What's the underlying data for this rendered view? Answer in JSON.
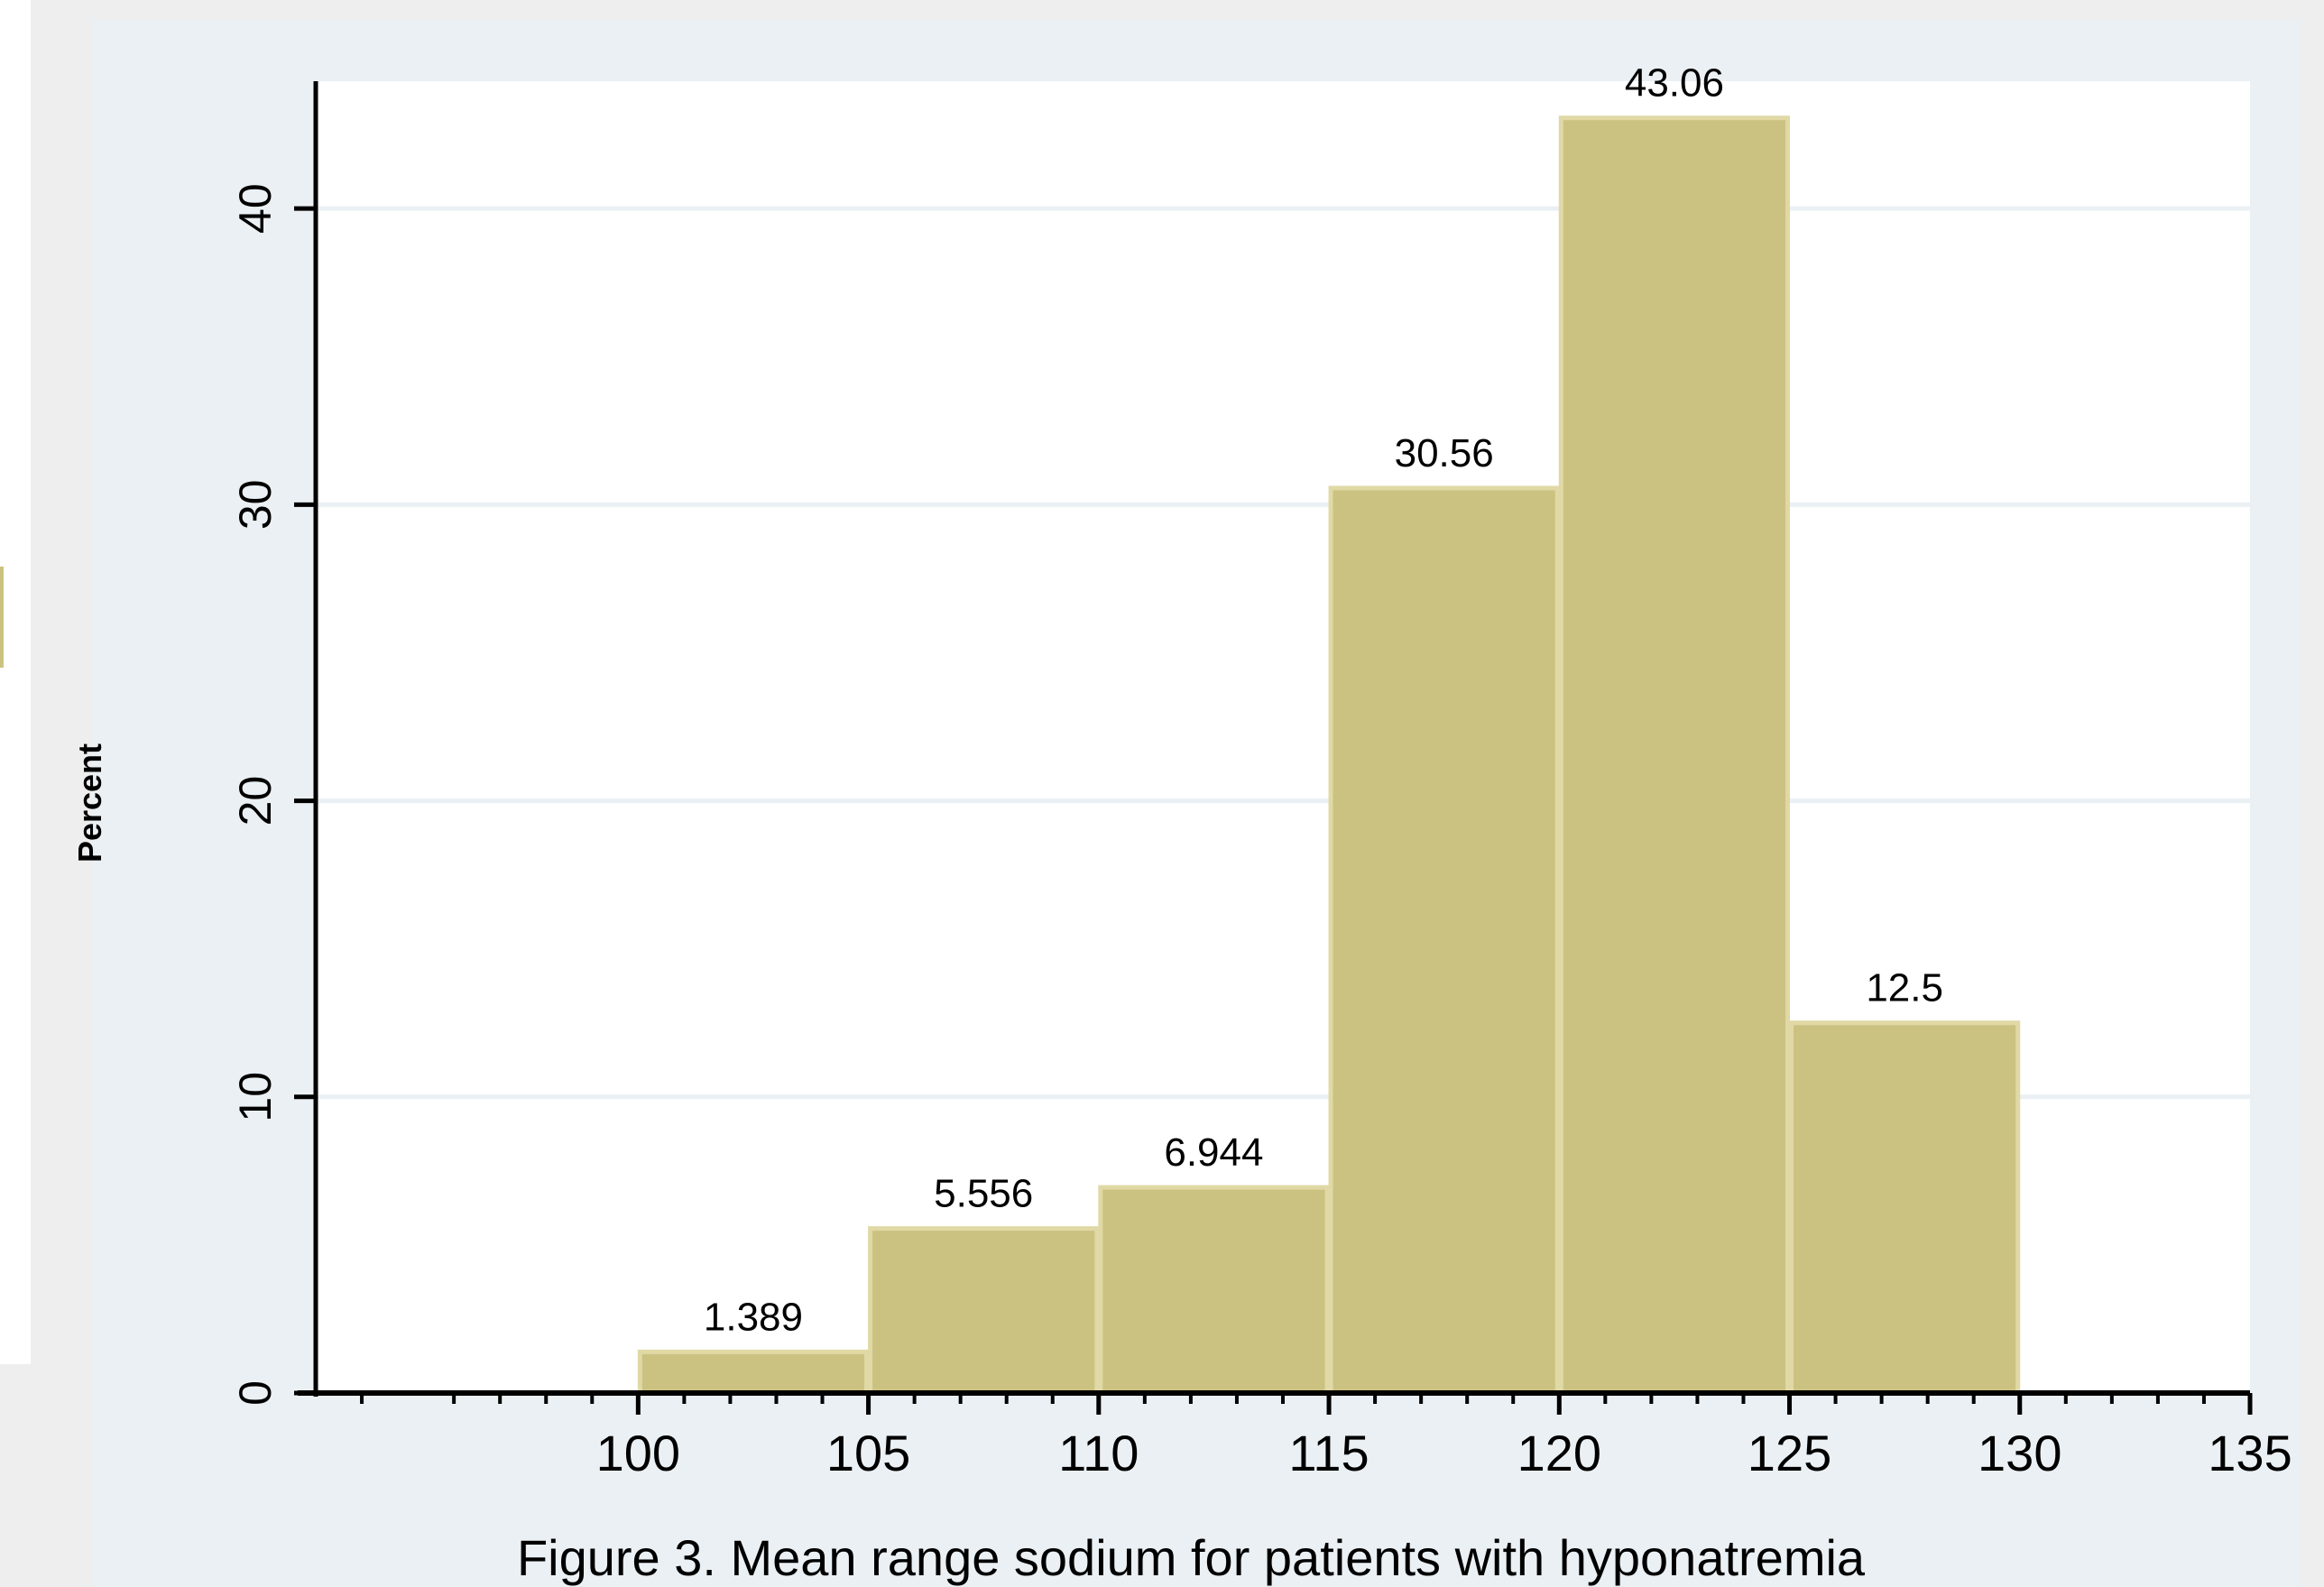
{
  "chart_data": {
    "type": "bar",
    "title": "",
    "ylabel": "Percent",
    "xlabel": "",
    "caption": "Figure 3. Mean range sodium for patients with hyponatremia",
    "bins": [
      {
        "start": 100,
        "end": 105,
        "value": 1.389,
        "label": "1.389"
      },
      {
        "start": 105,
        "end": 110,
        "value": 5.556,
        "label": "5.556"
      },
      {
        "start": 110,
        "end": 115,
        "value": 6.944,
        "label": "6.944"
      },
      {
        "start": 115,
        "end": 120,
        "value": 30.56,
        "label": "30.56"
      },
      {
        "start": 120,
        "end": 125,
        "value": 43.06,
        "label": "43.06"
      },
      {
        "start": 125,
        "end": 130,
        "value": 12.5,
        "label": "12.5"
      }
    ],
    "xlim": [
      93,
      135
    ],
    "ylim": [
      0,
      44.3
    ],
    "x_ticks": [
      "100",
      "105",
      "110",
      "115",
      "120",
      "125",
      "130",
      "135"
    ],
    "y_ticks": [
      "0",
      "10",
      "20",
      "30",
      "40"
    ],
    "grid": true,
    "colors": {
      "bar_fill": "#cbc281",
      "bar_edge": "#e0d9a6",
      "grid": "#eaf0f3",
      "axis": "#000000",
      "panel": "#eaf0f3"
    }
  }
}
